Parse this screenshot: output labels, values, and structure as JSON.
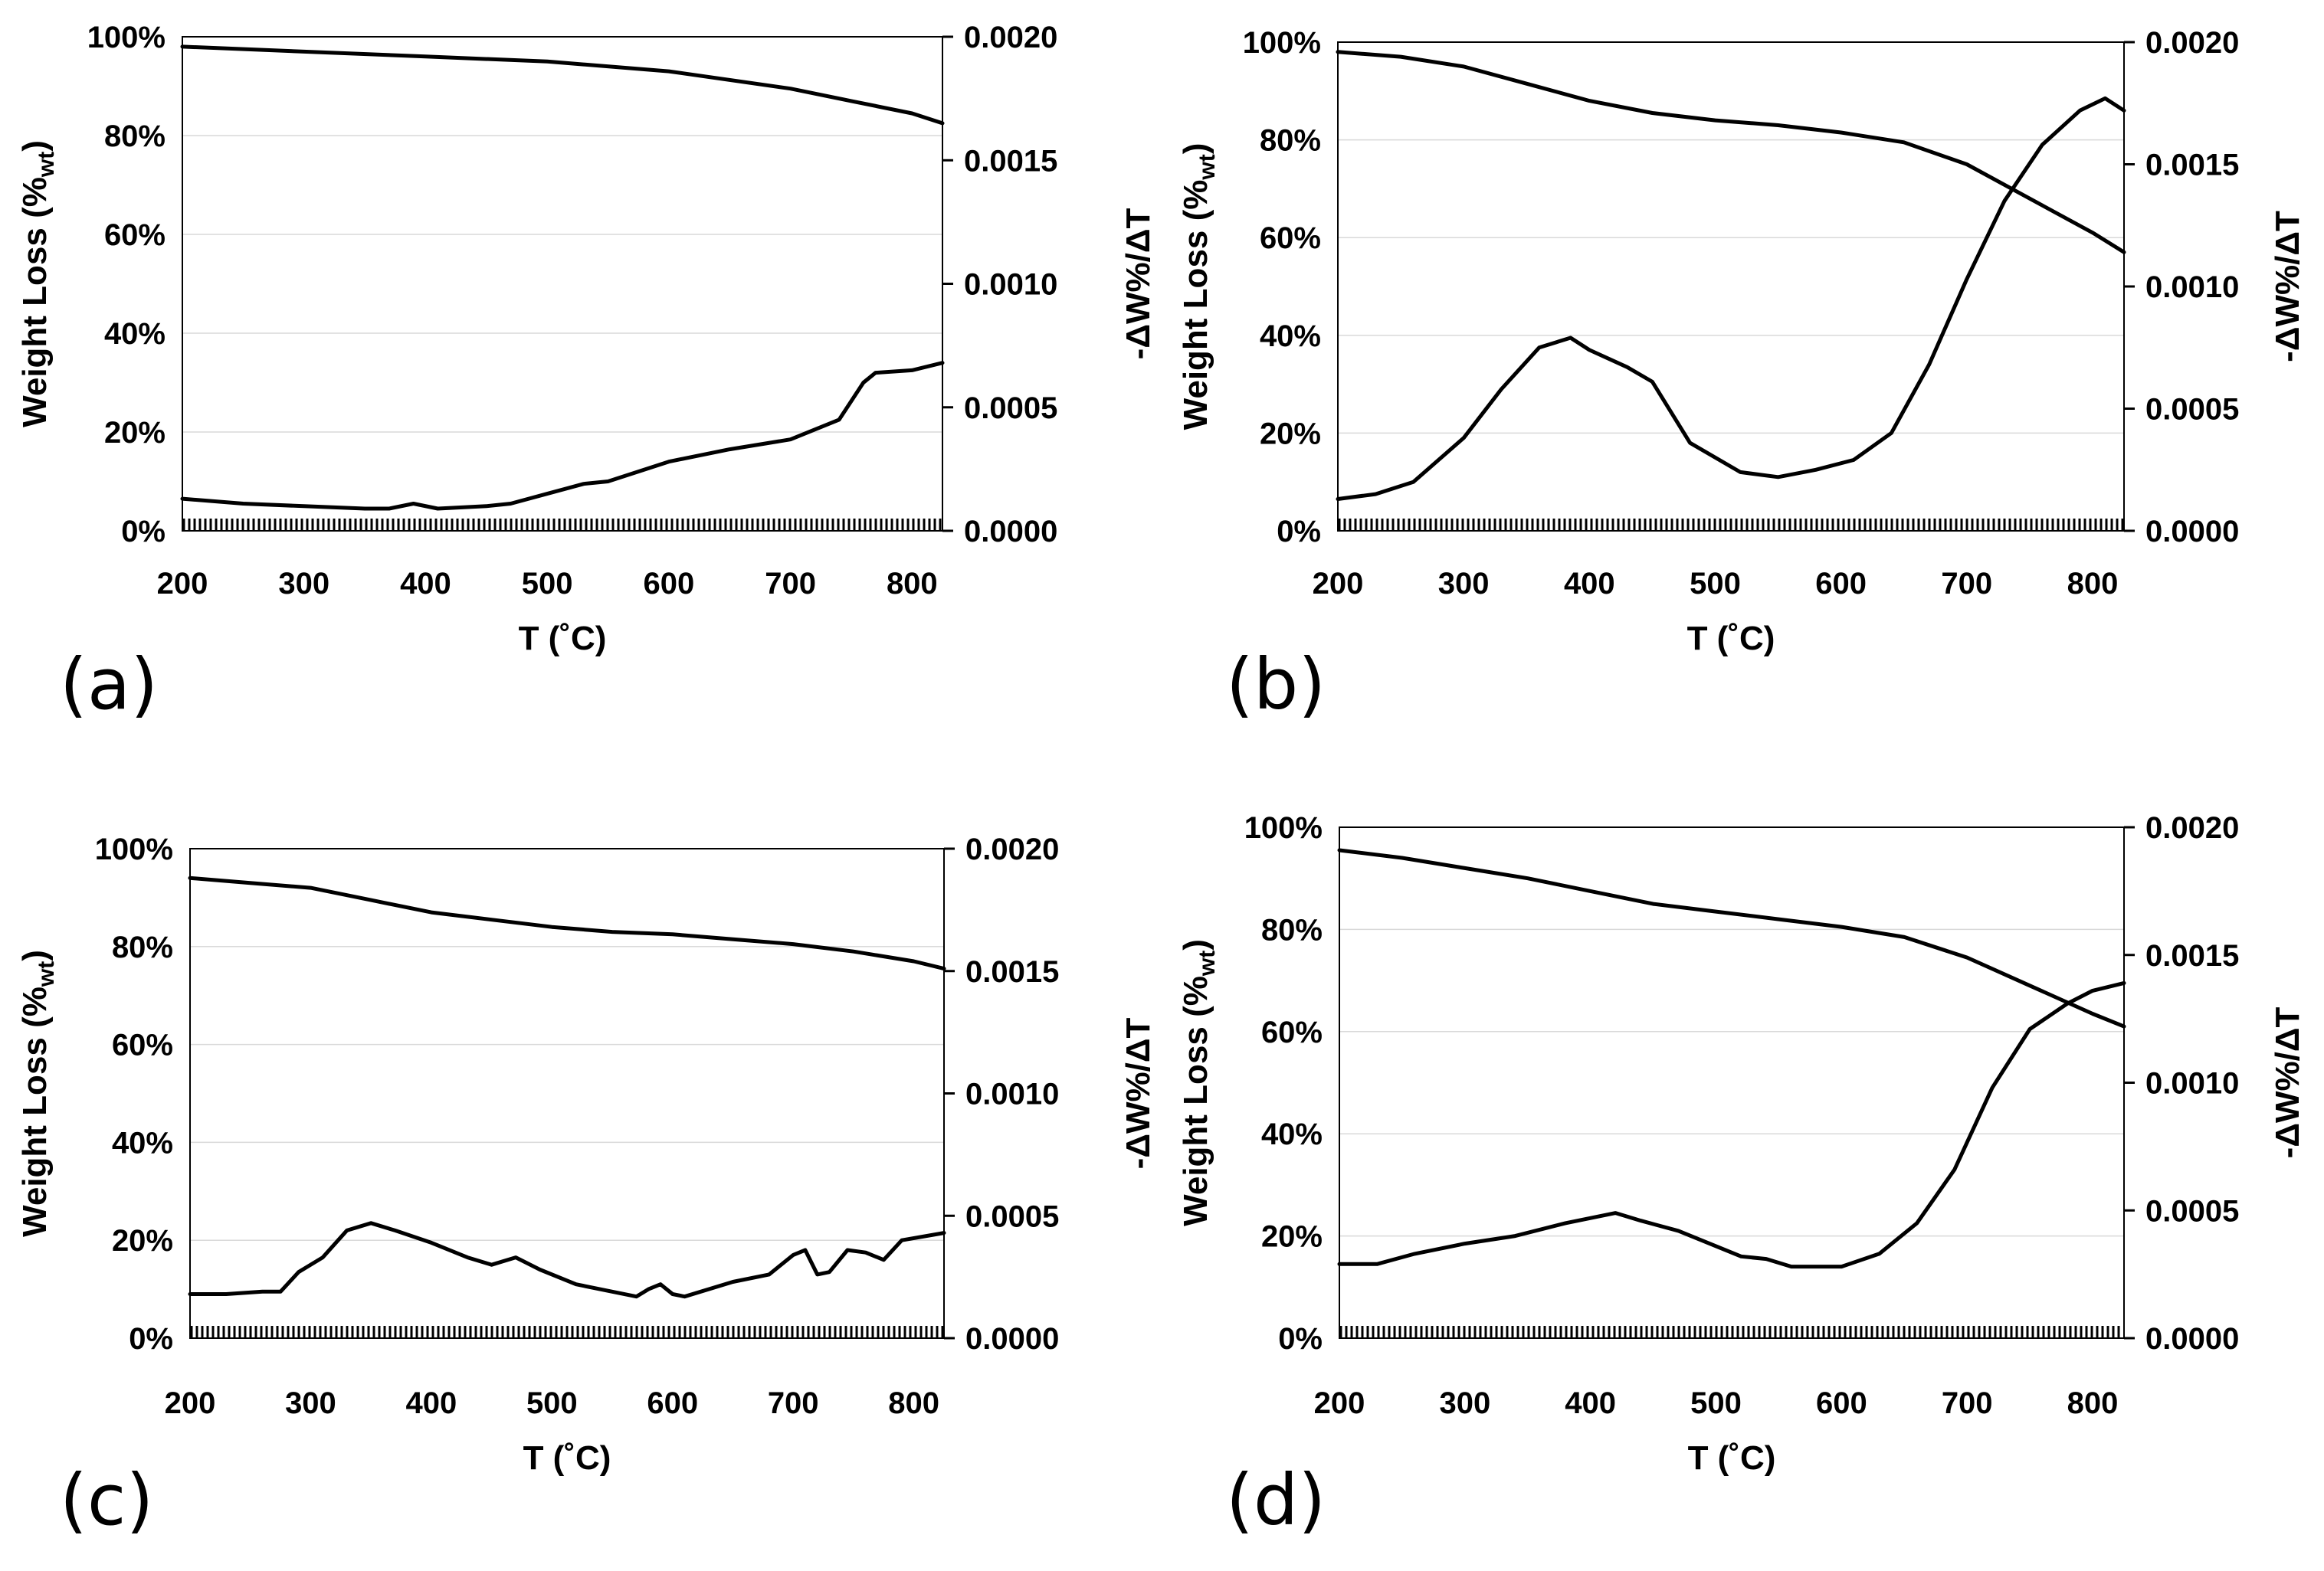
{
  "chart_data": [
    {
      "panel": "(a)",
      "type": "line",
      "xlabel": "T (˚C)",
      "ylabel": "Weight Loss (%wt)",
      "ylabel_main": "Weight Loss (%",
      "ylabel_sub": "wt",
      "ylabel_end": ")",
      "y2label": "-ΔW%/ΔT",
      "xlim": [
        200,
        825
      ],
      "ylim": [
        0,
        100
      ],
      "y2lim": [
        0,
        0.002
      ],
      "x_ticks": [
        "200",
        "300",
        "400",
        "500",
        "600",
        "700",
        "800"
      ],
      "y_ticks": [
        "0%",
        "20%",
        "40%",
        "60%",
        "80%",
        "100%"
      ],
      "y2_ticks": [
        "0.0000",
        "0.0005",
        "0.0010",
        "0.0015",
        "0.0020"
      ],
      "series": [
        {
          "name": "Weight Loss",
          "axis": "left",
          "x": [
            200,
            300,
            400,
            500,
            600,
            700,
            750,
            800,
            825
          ],
          "y": [
            98,
            97,
            96,
            95,
            93,
            89.5,
            87,
            84.5,
            82.5
          ]
        },
        {
          "name": "-ΔW%/ΔT",
          "axis": "right",
          "x": [
            200,
            250,
            300,
            350,
            370,
            390,
            410,
            450,
            470,
            500,
            530,
            550,
            600,
            650,
            700,
            740,
            760,
            770,
            800,
            825
          ],
          "y": [
            0.00013,
            0.00011,
            0.0001,
            9e-05,
            9e-05,
            0.00011,
            9e-05,
            0.0001,
            0.00011,
            0.00015,
            0.00019,
            0.0002,
            0.00028,
            0.00033,
            0.00037,
            0.00045,
            0.0006,
            0.00064,
            0.00065,
            0.00068
          ]
        }
      ]
    },
    {
      "panel": "(b)",
      "type": "line",
      "xlabel": "T (˚C)",
      "ylabel": "Weight Loss (%wt)",
      "ylabel_main": "Weight Loss (%",
      "ylabel_sub": "wt",
      "ylabel_end": ")",
      "y2label": "-ΔW%/ΔT",
      "xlim": [
        200,
        825
      ],
      "ylim": [
        0,
        100
      ],
      "y2lim": [
        0,
        0.002
      ],
      "x_ticks": [
        "200",
        "300",
        "400",
        "500",
        "600",
        "700",
        "800"
      ],
      "y_ticks": [
        "0%",
        "20%",
        "40%",
        "60%",
        "80%",
        "100%"
      ],
      "y2_ticks": [
        "0.0000",
        "0.0005",
        "0.0010",
        "0.0015",
        "0.0020"
      ],
      "series": [
        {
          "name": "Weight Loss",
          "axis": "left",
          "x": [
            200,
            250,
            300,
            350,
            400,
            450,
            500,
            550,
            600,
            650,
            700,
            750,
            800,
            825
          ],
          "y": [
            98,
            97,
            95,
            91.5,
            88,
            85.5,
            84,
            83,
            81.5,
            79.5,
            75,
            68,
            61,
            57
          ]
        },
        {
          "name": "-ΔW%/ΔT",
          "axis": "right",
          "x": [
            200,
            230,
            260,
            300,
            330,
            360,
            385,
            400,
            430,
            450,
            480,
            520,
            550,
            580,
            610,
            640,
            670,
            700,
            730,
            760,
            790,
            810,
            825
          ],
          "y": [
            0.00013,
            0.00015,
            0.0002,
            0.00038,
            0.00058,
            0.00075,
            0.00079,
            0.00074,
            0.00067,
            0.00061,
            0.00036,
            0.00024,
            0.00022,
            0.00025,
            0.00029,
            0.0004,
            0.00068,
            0.00103,
            0.00135,
            0.00158,
            0.00172,
            0.00177,
            0.00172
          ]
        }
      ]
    },
    {
      "panel": "(c)",
      "type": "line",
      "xlabel": "T (˚C)",
      "ylabel": "Weight Loss (%wt)",
      "ylabel_main": "Weight Loss (%",
      "ylabel_sub": "wt",
      "ylabel_end": ")",
      "y2label": "-ΔW%/ΔT",
      "xlim": [
        200,
        825
      ],
      "ylim": [
        0,
        100
      ],
      "y2lim": [
        0,
        0.002
      ],
      "x_ticks": [
        "200",
        "300",
        "400",
        "500",
        "600",
        "700",
        "800"
      ],
      "y_ticks": [
        "0%",
        "20%",
        "40%",
        "60%",
        "80%",
        "100%"
      ],
      "y2_ticks": [
        "0.0000",
        "0.0005",
        "0.0010",
        "0.0015",
        "0.0020"
      ],
      "series": [
        {
          "name": "Weight Loss",
          "axis": "left",
          "x": [
            200,
            250,
            300,
            350,
            400,
            450,
            500,
            550,
            600,
            650,
            700,
            750,
            800,
            825
          ],
          "y": [
            94,
            93,
            92,
            89.5,
            87,
            85.5,
            84,
            83,
            82.5,
            81.5,
            80.5,
            79,
            77,
            75.5
          ]
        },
        {
          "name": "-ΔW%/ΔT",
          "axis": "right",
          "x": [
            200,
            230,
            260,
            275,
            290,
            310,
            330,
            350,
            370,
            400,
            430,
            450,
            470,
            490,
            520,
            550,
            570,
            580,
            590,
            600,
            610,
            650,
            680,
            700,
            710,
            720,
            730,
            745,
            760,
            775,
            790,
            825
          ],
          "y": [
            0.00018,
            0.00018,
            0.00019,
            0.00019,
            0.00027,
            0.00033,
            0.00044,
            0.00047,
            0.00044,
            0.00039,
            0.00033,
            0.0003,
            0.00033,
            0.00028,
            0.00022,
            0.00019,
            0.00017,
            0.0002,
            0.00022,
            0.00018,
            0.00017,
            0.00023,
            0.00026,
            0.00034,
            0.00036,
            0.00026,
            0.00027,
            0.00036,
            0.00035,
            0.00032,
            0.0004,
            0.00043
          ]
        }
      ]
    },
    {
      "panel": "(d)",
      "type": "line",
      "xlabel": "T (˚C)",
      "ylabel": "Weight Loss (%wt)",
      "ylabel_main": "Weight Loss (%",
      "ylabel_sub": "wt",
      "ylabel_end": ")",
      "y2label": "-ΔW%/ΔT",
      "xlim": [
        200,
        825
      ],
      "ylim": [
        0,
        100
      ],
      "y2lim": [
        0,
        0.002
      ],
      "x_ticks": [
        "200",
        "300",
        "400",
        "500",
        "600",
        "700",
        "800"
      ],
      "y_ticks": [
        "0%",
        "20%",
        "40%",
        "60%",
        "80%",
        "100%"
      ],
      "y2_ticks": [
        "0.0000",
        "0.0005",
        "0.0010",
        "0.0015",
        "0.0020"
      ],
      "series": [
        {
          "name": "Weight Loss",
          "axis": "left",
          "x": [
            200,
            250,
            300,
            350,
            400,
            450,
            500,
            550,
            600,
            650,
            700,
            750,
            800,
            825
          ],
          "y": [
            95.5,
            94,
            92,
            90,
            87.5,
            85,
            83.5,
            82,
            80.5,
            78.5,
            74.5,
            69,
            63.5,
            61
          ]
        },
        {
          "name": "-ΔW%/ΔT",
          "axis": "right",
          "x": [
            200,
            230,
            260,
            300,
            340,
            380,
            420,
            440,
            470,
            500,
            520,
            540,
            560,
            600,
            630,
            660,
            690,
            720,
            750,
            780,
            800,
            825
          ],
          "y": [
            0.00029,
            0.00029,
            0.00033,
            0.00037,
            0.0004,
            0.00045,
            0.00049,
            0.00046,
            0.00042,
            0.00036,
            0.00032,
            0.00031,
            0.00028,
            0.00028,
            0.00033,
            0.00045,
            0.00066,
            0.00098,
            0.00121,
            0.00131,
            0.00136,
            0.00139
          ]
        }
      ]
    }
  ]
}
